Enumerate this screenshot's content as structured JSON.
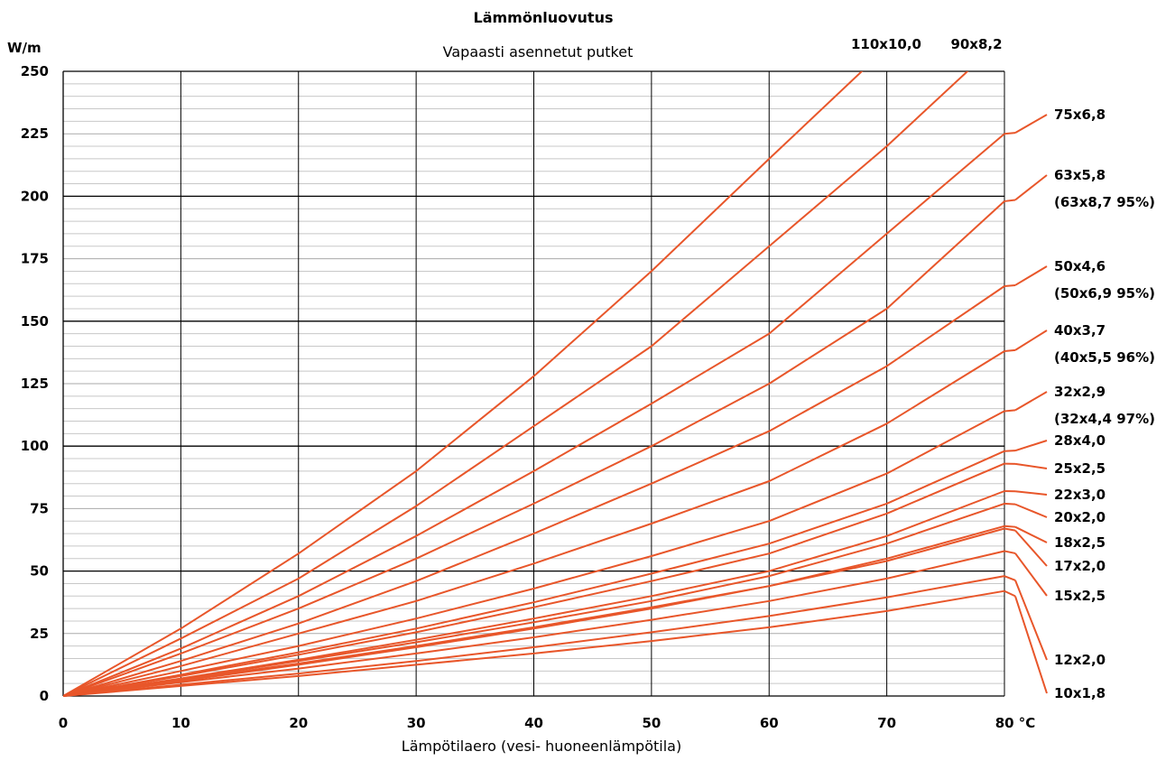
{
  "chart_data": {
    "type": "line",
    "title": "Lämmönluovutus",
    "subtitle": "Vapaasti asennetut putket",
    "xlabel": "Lämpötilaero (vesi- huoneenlämpötila)",
    "x_unit": "°C",
    "ylabel": "W/m",
    "xlim": [
      0,
      80
    ],
    "ylim": [
      0,
      250
    ],
    "x_ticks": [
      0,
      10,
      20,
      30,
      40,
      50,
      60,
      70,
      80
    ],
    "y_ticks": [
      0,
      25,
      50,
      75,
      100,
      125,
      150,
      175,
      200,
      225,
      250
    ],
    "grid": true,
    "line_color": "#e8562a",
    "series": [
      {
        "name": "110x10,0",
        "label_lines": [
          "110x10,0"
        ],
        "x": [
          0,
          10,
          20,
          30,
          40,
          50,
          60,
          69
        ],
        "y": [
          0,
          27,
          57,
          90,
          128,
          170,
          215,
          255
        ]
      },
      {
        "name": "90x8,2",
        "label_lines": [
          "90x8,2"
        ],
        "x": [
          0,
          10,
          20,
          30,
          40,
          50,
          60,
          70,
          78
        ],
        "y": [
          0,
          23,
          47,
          76,
          108,
          140,
          180,
          220,
          255
        ]
      },
      {
        "name": "75x6,8",
        "label_lines": [
          "75x6,8"
        ],
        "x": [
          0,
          10,
          20,
          30,
          40,
          50,
          60,
          70,
          80
        ],
        "y": [
          0,
          19,
          40,
          64,
          90,
          117,
          145,
          185,
          225
        ]
      },
      {
        "name": "63x5,8 (63x8,7 95%)",
        "label_lines": [
          "63x5,8",
          "(63x8,7 95%)"
        ],
        "x": [
          0,
          10,
          20,
          30,
          40,
          50,
          60,
          70,
          80
        ],
        "y": [
          0,
          17,
          35,
          55,
          77,
          100,
          125,
          155,
          198
        ]
      },
      {
        "name": "50x4,6 (50x6,9 95%)",
        "label_lines": [
          "50x4,6",
          "(50x6,9 95%)"
        ],
        "x": [
          0,
          10,
          20,
          30,
          40,
          50,
          60,
          70,
          80
        ],
        "y": [
          0,
          14,
          29,
          46,
          65,
          85,
          106,
          132,
          164
        ]
      },
      {
        "name": "40x3,7 (40x5,5 96%)",
        "label_lines": [
          "40x3,7",
          "(40x5,5 96%)"
        ],
        "x": [
          0,
          10,
          20,
          30,
          40,
          50,
          60,
          70,
          80
        ],
        "y": [
          0,
          12,
          25,
          38,
          53,
          69,
          86,
          109,
          138
        ]
      },
      {
        "name": "32x2,9 (32x4,4 97%)",
        "label_lines": [
          "32x2,9",
          "(32x4,4 97%)"
        ],
        "x": [
          0,
          10,
          20,
          30,
          40,
          50,
          60,
          70,
          80
        ],
        "y": [
          0,
          10,
          20,
          31,
          43,
          56,
          70,
          89,
          114
        ]
      },
      {
        "name": "28x4,0",
        "label_lines": [
          "28x4,0"
        ],
        "x": [
          0,
          10,
          20,
          30,
          40,
          50,
          60,
          70,
          80
        ],
        "y": [
          0,
          8.5,
          17.5,
          27,
          37.5,
          49,
          61,
          77,
          98
        ]
      },
      {
        "name": "25x2,5",
        "label_lines": [
          "25x2,5"
        ],
        "x": [
          0,
          10,
          20,
          30,
          40,
          50,
          60,
          70,
          80
        ],
        "y": [
          0,
          8,
          16.5,
          25.5,
          35.5,
          46,
          57,
          73,
          93
        ]
      },
      {
        "name": "22x3,0",
        "label_lines": [
          "22x3,0"
        ],
        "x": [
          0,
          10,
          20,
          30,
          40,
          50,
          60,
          70,
          80
        ],
        "y": [
          0,
          7,
          14.5,
          22.5,
          31,
          40,
          50,
          64,
          82
        ]
      },
      {
        "name": "20x2,0",
        "label_lines": [
          "20x2,0"
        ],
        "x": [
          0,
          10,
          20,
          30,
          40,
          50,
          60,
          70,
          80
        ],
        "y": [
          0,
          6.8,
          14,
          21.5,
          29.5,
          38,
          48,
          61,
          77
        ]
      },
      {
        "name": "18x2,5",
        "label_lines": [
          "18x2,5"
        ],
        "x": [
          0,
          10,
          20,
          30,
          40,
          50,
          60,
          70,
          80
        ],
        "y": [
          0,
          6,
          12.5,
          19.5,
          27,
          35,
          44,
          55,
          68
        ]
      },
      {
        "name": "17x2,0",
        "label_lines": [
          "17x2,0"
        ],
        "x": [
          0,
          10,
          20,
          30,
          40,
          50,
          60,
          70,
          80
        ],
        "y": [
          0,
          6.5,
          13,
          20,
          27.5,
          35.5,
          44,
          54,
          67
        ]
      },
      {
        "name": "15x2,5",
        "label_lines": [
          "15x2,5"
        ],
        "x": [
          0,
          10,
          20,
          30,
          40,
          50,
          60,
          70,
          80
        ],
        "y": [
          0,
          5.5,
          11,
          17,
          23.5,
          30.5,
          38,
          47,
          58
        ]
      },
      {
        "name": "12x2,0",
        "label_lines": [
          "12x2,0"
        ],
        "x": [
          0,
          10,
          20,
          30,
          40,
          50,
          60,
          70,
          80
        ],
        "y": [
          0,
          4.5,
          9,
          14,
          19.5,
          25.5,
          32,
          39.5,
          48
        ]
      },
      {
        "name": "10x1,8",
        "label_lines": [
          "10x1,8"
        ],
        "x": [
          0,
          10,
          20,
          30,
          40,
          50,
          60,
          70,
          80
        ],
        "y": [
          0,
          4,
          8,
          12.5,
          17,
          22,
          27.5,
          34,
          42
        ]
      }
    ]
  }
}
